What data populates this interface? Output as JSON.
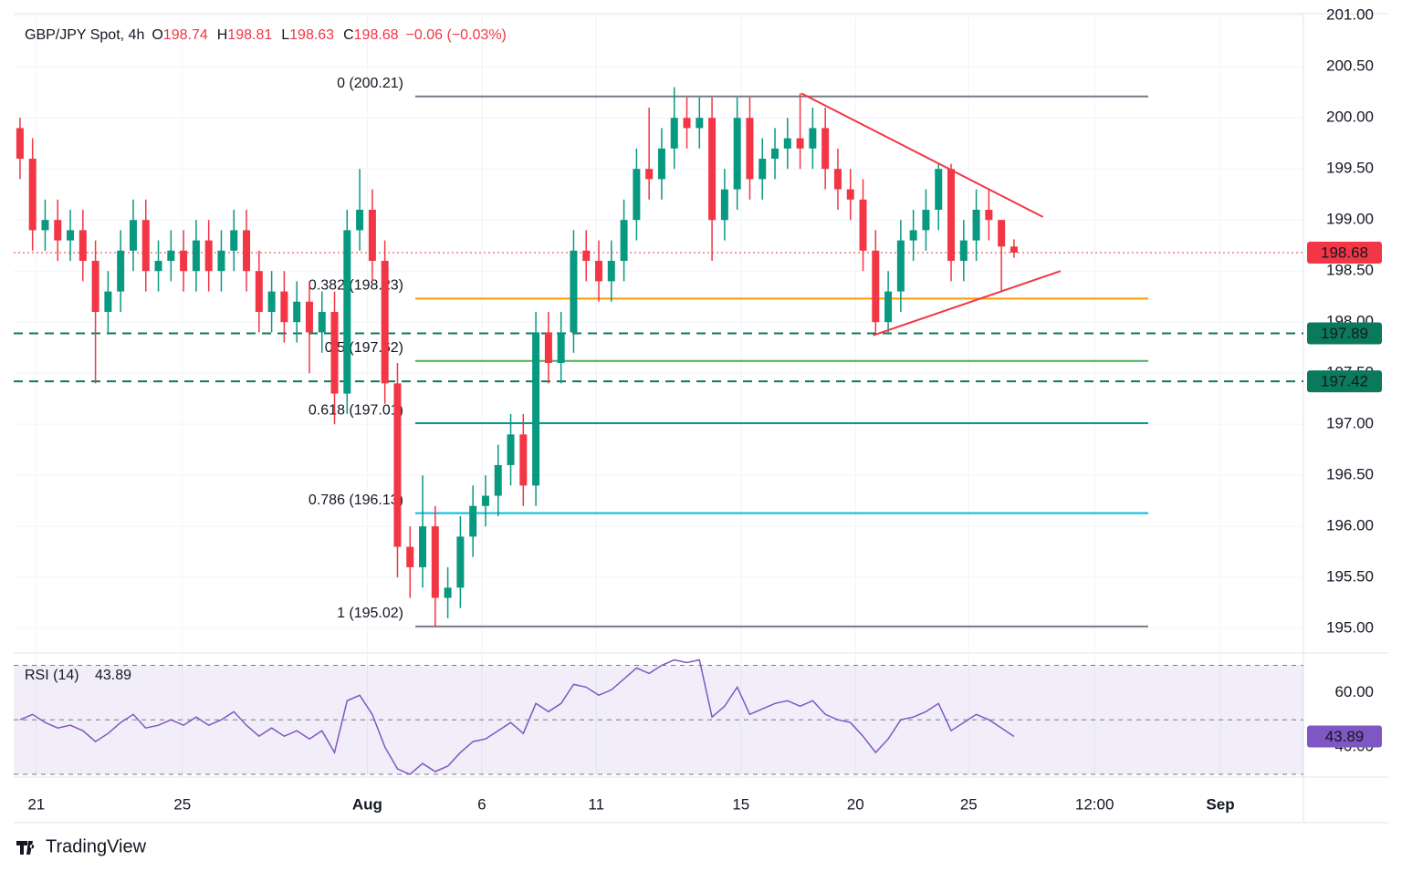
{
  "chart_data": {
    "type": "candlestick",
    "title": "GBP/JPY Spot, 4h",
    "ohlc_labels": [
      "O",
      "H",
      "L",
      "C"
    ],
    "change": "−0.06 (−0.03%)",
    "up_color": "#089981",
    "down_color": "#f23645",
    "open": [
      199.9,
      199.6,
      198.9,
      199.0,
      198.8,
      198.9,
      198.6,
      198.1,
      198.3,
      198.7,
      199.0,
      198.5,
      198.6,
      198.7,
      198.5,
      198.8,
      198.5,
      198.7,
      198.9,
      198.5,
      198.1,
      198.3,
      198.0,
      198.2,
      197.9,
      198.1,
      197.3,
      198.9,
      199.1,
      198.6,
      197.4,
      195.8,
      195.6,
      196.0,
      195.3,
      195.4,
      195.9,
      196.2,
      196.3,
      196.6,
      196.9,
      196.4,
      197.9,
      197.6,
      197.9,
      198.7,
      198.6,
      198.4,
      198.6,
      199.0,
      199.5,
      199.4,
      199.7,
      200.0,
      199.9,
      200.0,
      199.0,
      199.3,
      200.0,
      199.4,
      199.6,
      199.7,
      199.8,
      199.7,
      199.9,
      199.5,
      199.3,
      199.2,
      198.7,
      198.0,
      198.3,
      198.8,
      198.9,
      199.1,
      199.5,
      198.6,
      198.8,
      199.1,
      199.0,
      198.74
    ],
    "high": [
      200.0,
      199.8,
      199.2,
      199.2,
      199.1,
      199.1,
      198.8,
      198.5,
      198.9,
      199.2,
      199.2,
      198.8,
      198.9,
      198.9,
      199.0,
      199.0,
      198.9,
      199.1,
      199.1,
      198.7,
      198.5,
      198.5,
      198.4,
      198.4,
      198.3,
      198.3,
      199.1,
      199.5,
      199.3,
      198.8,
      197.6,
      196.0,
      196.5,
      196.2,
      195.6,
      196.1,
      196.4,
      196.5,
      196.8,
      197.1,
      197.1,
      198.1,
      198.1,
      198.1,
      198.9,
      198.9,
      198.8,
      198.8,
      199.2,
      199.7,
      200.1,
      199.9,
      200.3,
      200.2,
      200.2,
      200.2,
      199.5,
      200.2,
      200.2,
      199.8,
      199.9,
      200.0,
      200.24,
      200.1,
      200.1,
      199.7,
      199.5,
      199.4,
      198.9,
      198.5,
      199.0,
      199.1,
      199.3,
      199.55,
      199.55,
      199.0,
      199.3,
      199.3,
      199.0,
      198.81
    ],
    "low": [
      199.4,
      198.7,
      198.7,
      198.6,
      198.6,
      198.4,
      197.4,
      197.9,
      198.1,
      198.5,
      198.3,
      198.3,
      198.4,
      198.3,
      198.3,
      198.3,
      198.3,
      198.5,
      198.3,
      197.9,
      197.9,
      197.8,
      197.8,
      197.5,
      197.7,
      197.0,
      197.1,
      198.7,
      198.4,
      197.2,
      195.5,
      195.3,
      195.4,
      195.02,
      195.1,
      195.2,
      195.7,
      196.0,
      196.1,
      196.4,
      196.2,
      196.2,
      197.4,
      197.4,
      197.7,
      198.4,
      198.2,
      198.2,
      198.4,
      198.8,
      199.2,
      199.2,
      199.5,
      199.7,
      199.7,
      198.6,
      198.8,
      199.1,
      199.2,
      199.2,
      199.4,
      199.5,
      199.5,
      199.5,
      199.3,
      199.1,
      199.0,
      198.5,
      197.9,
      197.9,
      198.1,
      198.6,
      198.7,
      198.9,
      198.4,
      198.4,
      198.6,
      198.8,
      198.3,
      198.63
    ],
    "close": [
      199.6,
      198.9,
      199.0,
      198.8,
      198.9,
      198.6,
      198.1,
      198.3,
      198.7,
      199.0,
      198.5,
      198.6,
      198.7,
      198.5,
      198.8,
      198.5,
      198.7,
      198.9,
      198.5,
      198.1,
      198.3,
      198.0,
      198.2,
      197.9,
      198.1,
      197.3,
      198.9,
      199.1,
      198.6,
      197.4,
      195.8,
      195.6,
      196.0,
      195.3,
      195.4,
      195.9,
      196.2,
      196.3,
      196.6,
      196.9,
      196.4,
      197.9,
      197.6,
      197.9,
      198.7,
      198.6,
      198.4,
      198.6,
      199.0,
      199.5,
      199.4,
      199.7,
      200.0,
      199.9,
      200.0,
      199.0,
      199.3,
      200.0,
      199.4,
      199.6,
      199.7,
      199.8,
      199.7,
      199.9,
      199.5,
      199.3,
      199.2,
      198.7,
      198.0,
      198.3,
      198.8,
      198.9,
      199.1,
      199.5,
      198.6,
      198.8,
      199.1,
      199.0,
      198.74,
      198.68
    ],
    "ylim": [
      194.76,
      201.02
    ],
    "yticks": [
      {
        "value": 195,
        "label": "195.00"
      },
      {
        "value": 195.5,
        "label": "195.50"
      },
      {
        "value": 196,
        "label": "196.00"
      },
      {
        "value": 196.5,
        "label": "196.50"
      },
      {
        "value": 197,
        "label": "197.00"
      },
      {
        "value": 197.5,
        "label": "197.50"
      },
      {
        "value": 198,
        "label": "198.00"
      },
      {
        "value": 198.5,
        "label": "198.50"
      },
      {
        "value": 199,
        "label": "199.00"
      },
      {
        "value": 199.5,
        "label": "199.50"
      },
      {
        "value": 200,
        "label": "200.00"
      },
      {
        "value": 200.5,
        "label": "200.50"
      },
      {
        "value": 201,
        "label": "201.00"
      }
    ],
    "xlim": [
      0,
      102.5
    ],
    "xticks": [
      {
        "value": 1.8,
        "label": "21"
      },
      {
        "value": 13.4,
        "label": "25"
      },
      {
        "value": 28.1,
        "label": "Aug"
      },
      {
        "value": 37.2,
        "label": "6"
      },
      {
        "value": 46.3,
        "label": "11"
      },
      {
        "value": 57.8,
        "label": "15"
      },
      {
        "value": 66.9,
        "label": "20"
      },
      {
        "value": 75.9,
        "label": "25"
      },
      {
        "value": 85.9,
        "label": "12:00"
      },
      {
        "value": 95.9,
        "label": "Sep"
      }
    ],
    "last_price": 198.68,
    "levels": [
      197.89,
      197.42
    ],
    "level_color": "#0b7a5c",
    "fib": [
      {
        "label": "0 (200.21)",
        "value": 200.21,
        "color": "#787b86"
      },
      {
        "label": "0.382 (198.23)",
        "value": 198.23,
        "color": "#ff9800"
      },
      {
        "label": "0.5 (197.62)",
        "value": 197.62,
        "color": "#4caf50"
      },
      {
        "label": "0.618 (197.01)",
        "value": 197.01,
        "color": "#089981"
      },
      {
        "label": "0.786 (196.13)",
        "value": 196.13,
        "color": "#00bcd4"
      },
      {
        "label": "1 (195.02)",
        "value": 195.02,
        "color": "#787b86"
      }
    ],
    "trendlines": [
      {
        "x": [
          62.6,
          81.8
        ],
        "y": [
          200.24,
          199.03
        ]
      },
      {
        "x": [
          68.3,
          83.2
        ],
        "y": [
          197.87,
          198.5
        ]
      }
    ],
    "trend_color": "#f23645",
    "rsi": {
      "title": "RSI (14)",
      "color": "#7e57c2",
      "values": [
        50,
        52,
        49,
        47,
        48,
        46,
        42,
        45,
        49,
        52,
        47,
        48,
        50,
        48,
        51,
        48,
        50,
        53,
        48,
        44,
        47,
        44,
        46,
        43,
        46,
        38,
        57,
        59,
        52,
        40,
        32,
        30,
        34,
        31,
        33,
        38,
        42,
        43,
        46,
        49,
        45,
        56,
        53,
        56,
        63,
        62,
        59,
        61,
        65,
        69,
        67,
        70,
        72,
        71,
        72,
        51,
        55,
        62,
        52,
        54,
        56,
        57,
        55,
        57,
        52,
        50,
        49,
        44,
        38,
        43,
        50,
        51,
        53,
        56,
        46,
        49,
        52,
        50,
        47,
        43.89
      ],
      "ylim": [
        29,
        74.5
      ],
      "yticks": [
        {
          "value": 60,
          "label": "60.00"
        },
        {
          "value": 40,
          "label": "40.00"
        }
      ],
      "levels": [
        30,
        50,
        70
      ]
    },
    "brand": "TradingView"
  }
}
